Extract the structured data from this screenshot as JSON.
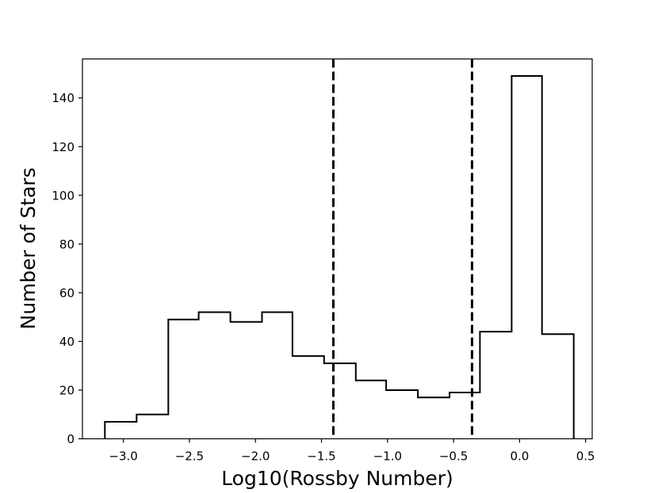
{
  "chart_data": {
    "type": "histogram",
    "xlabel": "Log10(Rossby Number)",
    "ylabel": "Number of Stars",
    "xlim": [
      -3.31,
      0.55
    ],
    "ylim": [
      0,
      156
    ],
    "bin_edges": [
      -3.14,
      -2.9,
      -2.66,
      -2.43,
      -2.19,
      -1.95,
      -1.72,
      -1.48,
      -1.24,
      -1.01,
      -0.77,
      -0.53,
      -0.3,
      -0.06,
      0.17,
      0.41
    ],
    "counts": [
      7,
      10,
      49,
      52,
      48,
      52,
      34,
      31,
      24,
      20,
      17,
      19,
      44,
      149,
      43
    ],
    "histtype": "step",
    "line_color": "#000000",
    "vlines": [
      {
        "x": -1.41,
        "style": "dashed",
        "color": "#000000"
      },
      {
        "x": -0.36,
        "style": "dashed",
        "color": "#000000"
      }
    ],
    "xticks": [
      {
        "value": -3.0,
        "label": "−3.0"
      },
      {
        "value": -2.5,
        "label": "−2.5"
      },
      {
        "value": -2.0,
        "label": "−2.0"
      },
      {
        "value": -1.5,
        "label": "−1.5"
      },
      {
        "value": -1.0,
        "label": "−1.0"
      },
      {
        "value": -0.5,
        "label": "−0.5"
      },
      {
        "value": 0.0,
        "label": "0.0"
      },
      {
        "value": 0.5,
        "label": "0.5"
      }
    ],
    "yticks": [
      {
        "value": 0,
        "label": "0"
      },
      {
        "value": 20,
        "label": "20"
      },
      {
        "value": 40,
        "label": "40"
      },
      {
        "value": 60,
        "label": "60"
      },
      {
        "value": 80,
        "label": "80"
      },
      {
        "value": 100,
        "label": "100"
      },
      {
        "value": 120,
        "label": "120"
      },
      {
        "value": 140,
        "label": "140"
      }
    ],
    "grid": false,
    "legend": "none"
  }
}
